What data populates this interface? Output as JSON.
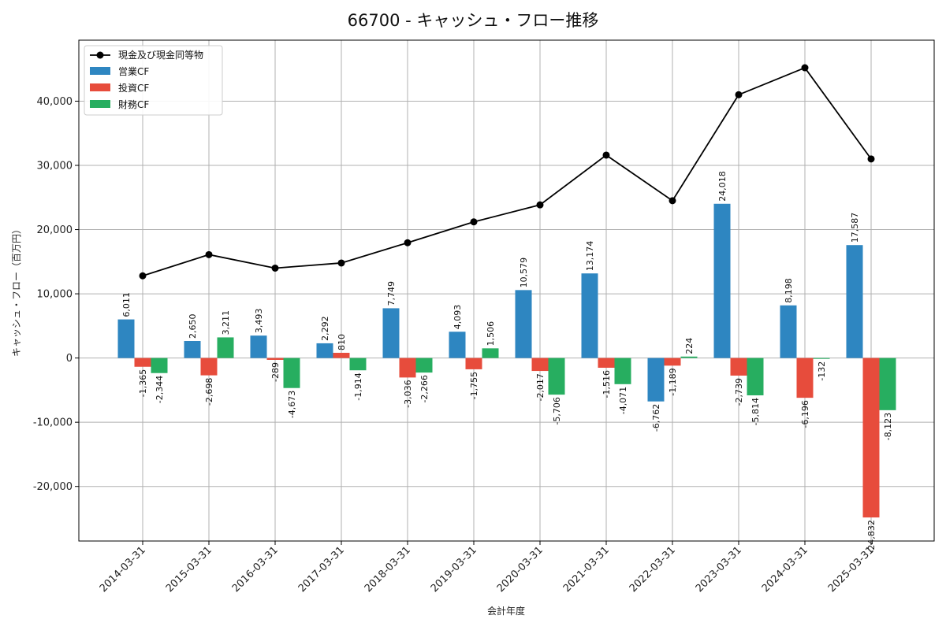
{
  "chart_data": {
    "type": "bar",
    "title": "66700 - キャッシュ・フロー推移",
    "xlabel": "会計年度",
    "ylabel": "キャッシュ・フロー（百万円）",
    "categories": [
      "2014-03-31",
      "2015-03-31",
      "2016-03-31",
      "2017-03-31",
      "2018-03-31",
      "2019-03-31",
      "2020-03-31",
      "2021-03-31",
      "2022-03-31",
      "2023-03-31",
      "2024-03-31",
      "2025-03-31"
    ],
    "ylim": [
      -28500,
      49500
    ],
    "yticks": [
      -20000,
      -10000,
      0,
      10000,
      20000,
      30000,
      40000
    ],
    "ytick_labels": [
      "-20,000",
      "-10,000",
      "0",
      "10,000",
      "20,000",
      "30,000",
      "40,000"
    ],
    "grid": true,
    "legend_position": "top-left",
    "series": [
      {
        "name": "営業CF",
        "kind": "bar",
        "color": "#2e86c1",
        "values": [
          6011,
          2650,
          3493,
          2292,
          7749,
          4093,
          10579,
          13174,
          -6762,
          24018,
          8198,
          17587
        ],
        "labels": [
          "6,011",
          "2,650",
          "3,493",
          "2,292",
          "7,749",
          "4,093",
          "10,579",
          "13,174",
          "-6,762",
          "24,018",
          "8,198",
          "17,587"
        ]
      },
      {
        "name": "投資CF",
        "kind": "bar",
        "color": "#e74c3c",
        "values": [
          -1365,
          -2698,
          -289,
          810,
          -3036,
          -1755,
          -2017,
          -1516,
          -1189,
          -2739,
          -6196,
          -24832
        ],
        "labels": [
          "-1,365",
          "-2,698",
          "-289",
          "810",
          "-3,036",
          "-1,755",
          "-2,017",
          "-1,516",
          "-1,189",
          "-2,739",
          "-6,196",
          "-24,832"
        ]
      },
      {
        "name": "財務CF",
        "kind": "bar",
        "color": "#27ae60",
        "values": [
          -2344,
          3211,
          -4673,
          -1914,
          -2266,
          1506,
          -5706,
          -4071,
          224,
          -5814,
          -132,
          -8123
        ],
        "labels": [
          "-2,344",
          "3,211",
          "-4,673",
          "-1,914",
          "-2,266",
          "1,506",
          "-5,706",
          "-4,071",
          "224",
          "-5,814",
          "-132",
          "-8,123"
        ]
      },
      {
        "name": "現金及び現金同等物",
        "kind": "line",
        "color": "#000000",
        "values": [
          12800,
          16100,
          14000,
          14800,
          17950,
          21200,
          23850,
          31600,
          24500,
          41000,
          45200,
          31000
        ]
      }
    ]
  }
}
